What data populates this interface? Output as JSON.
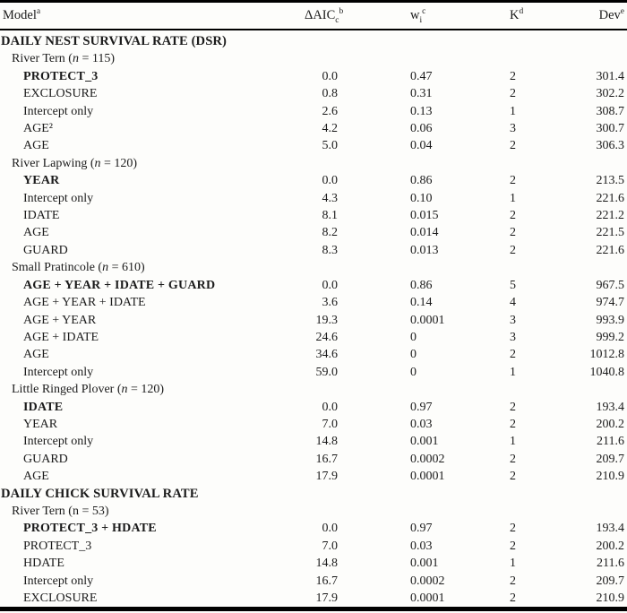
{
  "palette": {
    "background": "#fdfdfb",
    "text": "#1b1b1b",
    "rule": "#000000"
  },
  "header": {
    "model": {
      "base": "Model",
      "sup": "a"
    },
    "daicc": {
      "base": "ΔAIC",
      "sub": "c",
      "sup": "b"
    },
    "wi": {
      "base": "w",
      "sub": "i",
      "sup": "c"
    },
    "k": {
      "base": "K",
      "sup": "d"
    },
    "dev": {
      "base": "Dev",
      "sup": "e"
    }
  },
  "table": {
    "rows": [
      {
        "type": "section",
        "label": "DAILY NEST SURVIVAL RATE (DSR)"
      },
      {
        "type": "group",
        "pre": "River Tern (",
        "nvar": "n",
        "post": " = 115)",
        "n_italic": true
      },
      {
        "type": "model",
        "label": "PROTECT_3",
        "bold": true,
        "daic": "0.0",
        "w": "0.47",
        "k": "2",
        "dev": "301.4"
      },
      {
        "type": "model",
        "label": "EXCLOSURE",
        "bold": false,
        "daic": "0.8",
        "w": "0.31",
        "k": "2",
        "dev": "302.2"
      },
      {
        "type": "model",
        "label": "Intercept only",
        "bold": false,
        "daic": "2.6",
        "w": "0.13",
        "k": "1",
        "dev": "308.7"
      },
      {
        "type": "model",
        "label": "AGE²",
        "bold": false,
        "daic": "4.2",
        "w": "0.06",
        "k": "3",
        "dev": "300.7"
      },
      {
        "type": "model",
        "label": "AGE",
        "bold": false,
        "daic": "5.0",
        "w": "0.04",
        "k": "2",
        "dev": "306.3"
      },
      {
        "type": "group",
        "pre": "River Lapwing (",
        "nvar": "n",
        "post": " = 120)",
        "n_italic": true
      },
      {
        "type": "model",
        "label": "YEAR",
        "bold": true,
        "daic": "0.0",
        "w": "0.86",
        "k": "2",
        "dev": "213.5"
      },
      {
        "type": "model",
        "label": "Intercept only",
        "bold": false,
        "daic": "4.3",
        "w": "0.10",
        "k": "1",
        "dev": "221.6"
      },
      {
        "type": "model",
        "label": "IDATE",
        "bold": false,
        "daic": "8.1",
        "w": "0.015",
        "k": "2",
        "dev": "221.2"
      },
      {
        "type": "model",
        "label": "AGE",
        "bold": false,
        "daic": "8.2",
        "w": "0.014",
        "k": "2",
        "dev": "221.5"
      },
      {
        "type": "model",
        "label": "GUARD",
        "bold": false,
        "daic": "8.3",
        "w": "0.013",
        "k": "2",
        "dev": "221.6"
      },
      {
        "type": "group",
        "pre": "Small Pratincole (",
        "nvar": "n",
        "post": " = 610)",
        "n_italic": true
      },
      {
        "type": "model",
        "label": "AGE + YEAR + IDATE + GUARD",
        "bold": true,
        "daic": "0.0",
        "w": "0.86",
        "k": "5",
        "dev": "967.5"
      },
      {
        "type": "model",
        "label": "AGE + YEAR + IDATE",
        "bold": false,
        "daic": "3.6",
        "w": "0.14",
        "k": "4",
        "dev": "974.7"
      },
      {
        "type": "model",
        "label": "AGE + YEAR",
        "bold": false,
        "daic": "19.3",
        "w": "0.0001",
        "k": "3",
        "dev": "993.9"
      },
      {
        "type": "model",
        "label": "AGE + IDATE",
        "bold": false,
        "daic": "24.6",
        "w": "0",
        "k": "3",
        "dev": "999.2"
      },
      {
        "type": "model",
        "label": "AGE",
        "bold": false,
        "daic": "34.6",
        "w": "0",
        "k": "2",
        "dev": "1012.8"
      },
      {
        "type": "model",
        "label": "Intercept only",
        "bold": false,
        "daic": "59.0",
        "w": "0",
        "k": "1",
        "dev": "1040.8"
      },
      {
        "type": "group",
        "pre": "Little Ringed Plover (",
        "nvar": "n",
        "post": " = 120)",
        "n_italic": true
      },
      {
        "type": "model",
        "label": "IDATE",
        "bold": true,
        "daic": "0.0",
        "w": "0.97",
        "k": "2",
        "dev": "193.4"
      },
      {
        "type": "model",
        "label": "YEAR",
        "bold": false,
        "daic": "7.0",
        "w": "0.03",
        "k": "2",
        "dev": "200.2"
      },
      {
        "type": "model",
        "label": "Intercept only",
        "bold": false,
        "daic": "14.8",
        "w": "0.001",
        "k": "1",
        "dev": "211.6"
      },
      {
        "type": "model",
        "label": "GUARD",
        "bold": false,
        "daic": "16.7",
        "w": "0.0002",
        "k": "2",
        "dev": "209.7"
      },
      {
        "type": "model",
        "label": "AGE",
        "bold": false,
        "daic": "17.9",
        "w": "0.0001",
        "k": "2",
        "dev": "210.9"
      },
      {
        "type": "section",
        "label": "DAILY CHICK SURVIVAL RATE"
      },
      {
        "type": "group",
        "pre": "River Tern (",
        "nvar": "n",
        "post": " = 53)",
        "n_italic": false
      },
      {
        "type": "model",
        "label": "PROTECT_3 + HDATE",
        "bold": true,
        "daic": "0.0",
        "w": "0.97",
        "k": "2",
        "dev": "193.4"
      },
      {
        "type": "model",
        "label": "PROTECT_3",
        "bold": false,
        "daic": "7.0",
        "w": "0.03",
        "k": "2",
        "dev": "200.2"
      },
      {
        "type": "model",
        "label": "HDATE",
        "bold": false,
        "daic": "14.8",
        "w": "0.001",
        "k": "1",
        "dev": "211.6"
      },
      {
        "type": "model",
        "label": "Intercept only",
        "bold": false,
        "daic": "16.7",
        "w": "0.0002",
        "k": "2",
        "dev": "209.7"
      },
      {
        "type": "model",
        "label": "EXCLOSURE",
        "bold": false,
        "daic": "17.9",
        "w": "0.0001",
        "k": "2",
        "dev": "210.9"
      }
    ]
  }
}
